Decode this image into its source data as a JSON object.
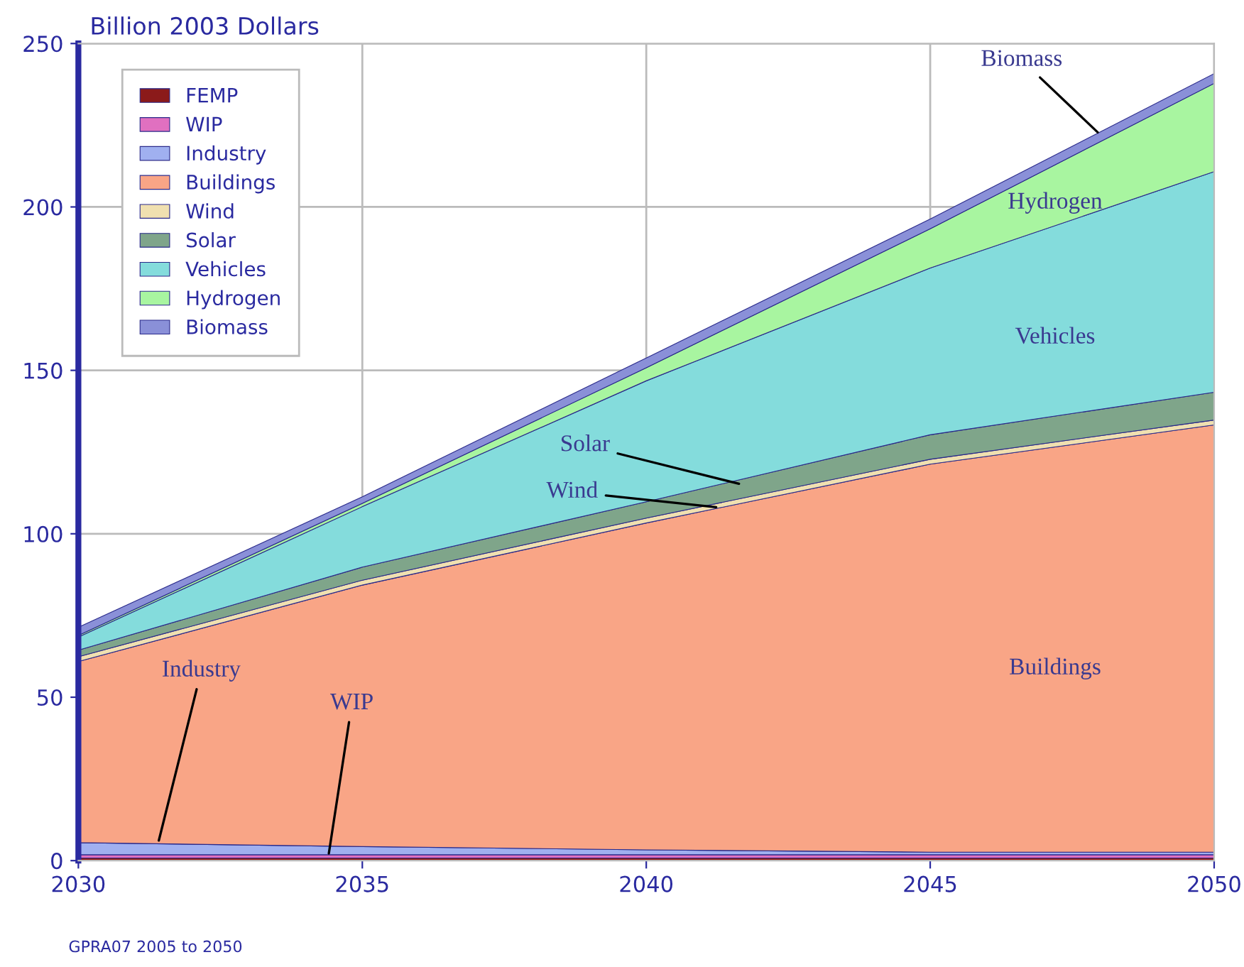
{
  "chart_data": {
    "type": "area",
    "stacked": true,
    "ylabel": "Billion 2003 Dollars",
    "x": [
      2030,
      2035,
      2040,
      2045,
      2050
    ],
    "series": [
      {
        "name": "FEMP",
        "color": "#8b1a1a",
        "values": [
          0.8,
          0.8,
          0.8,
          0.8,
          0.8
        ]
      },
      {
        "name": "WIP",
        "color": "#e070c0",
        "values": [
          1.0,
          1.0,
          1.0,
          1.0,
          1.0
        ]
      },
      {
        "name": "Industry",
        "color": "#a0b0f0",
        "values": [
          3.7,
          2.5,
          1.5,
          0.8,
          0.8
        ]
      },
      {
        "name": "Buildings",
        "color": "#f9a586",
        "values": [
          55.4,
          80,
          100,
          118.7,
          130.7
        ]
      },
      {
        "name": "Wind",
        "color": "#f0e0b0",
        "values": [
          1.5,
          1.5,
          1.5,
          1.5,
          1.5
        ]
      },
      {
        "name": "Solar",
        "color": "#7fa58a",
        "values": [
          2,
          4,
          5,
          7.5,
          8.5
        ]
      },
      {
        "name": "Vehicles",
        "color": "#84dcdc",
        "values": [
          4,
          18.5,
          37,
          51,
          67.5
        ]
      },
      {
        "name": "Hydrogen",
        "color": "#a8f5a0",
        "values": [
          0.5,
          1,
          4,
          12,
          27
        ]
      },
      {
        "name": "Biomass",
        "color": "#8a90d8",
        "values": [
          2.5,
          2,
          3,
          3,
          3
        ]
      }
    ],
    "xlim": [
      2030,
      2050
    ],
    "xticks": [
      2030,
      2035,
      2040,
      2045,
      2050
    ],
    "ylim": [
      0,
      250
    ],
    "yticks": [
      0,
      50,
      100,
      150,
      200,
      250
    ],
    "grid": true,
    "legend": "top left",
    "annotations": [
      {
        "text": "Biomass",
        "x": 2048,
        "y": 222
      },
      "Hydrogen",
      "Vehicles",
      {
        "text": "Solar",
        "x": 2041.7,
        "y": 115
      },
      {
        "text": "Wind",
        "x": 2041.3,
        "y": 108
      },
      "Buildings",
      {
        "text": "Industry",
        "x": 2031.4,
        "y": 5
      },
      {
        "text": "WIP",
        "x": 2034.4,
        "y": 1
      },
      "GPRA07 2005 to 2050"
    ]
  }
}
